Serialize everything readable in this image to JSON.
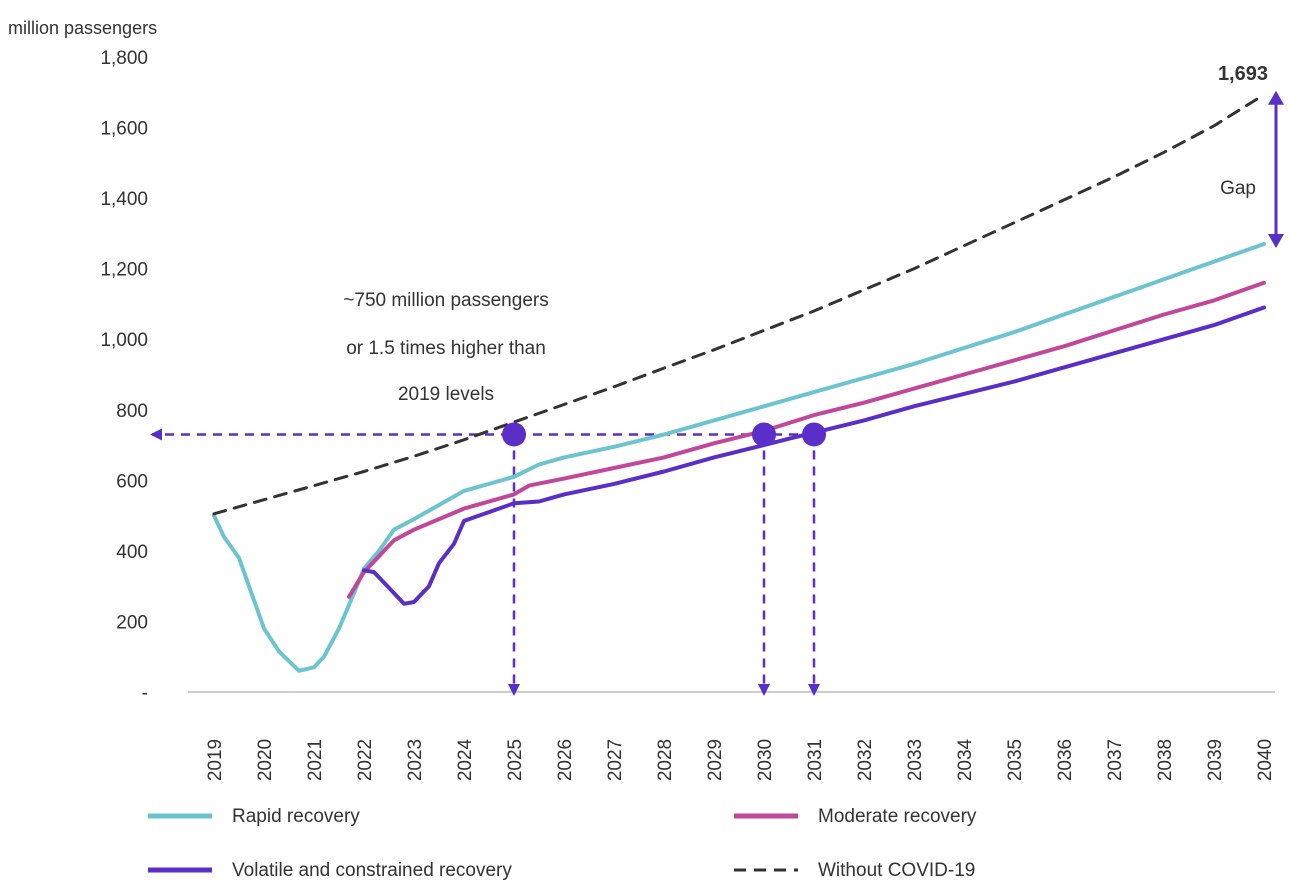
{
  "chart_data": {
    "type": "line",
    "ylabel": "million passengers",
    "y_ticks": [
      {
        "value": 0,
        "label": "-"
      },
      {
        "value": 200,
        "label": "200"
      },
      {
        "value": 400,
        "label": "400"
      },
      {
        "value": 600,
        "label": "600"
      },
      {
        "value": 800,
        "label": "800"
      },
      {
        "value": 1000,
        "label": "1,000"
      },
      {
        "value": 1200,
        "label": "1,200"
      },
      {
        "value": 1400,
        "label": "1,400"
      },
      {
        "value": 1600,
        "label": "1,600"
      },
      {
        "value": 1800,
        "label": "1,800"
      }
    ],
    "ylim": [
      0,
      1800
    ],
    "xlim": [
      2019,
      2040
    ],
    "x_ticks": [
      "2019",
      "2020",
      "2021",
      "2022",
      "2023",
      "2024",
      "2025",
      "2026",
      "2027",
      "2028",
      "2029",
      "2030",
      "2031",
      "2032",
      "2033",
      "2034",
      "2035",
      "2036",
      "2037",
      "2038",
      "2039",
      "2040"
    ],
    "grid": false,
    "legend_position": "bottom",
    "series": [
      {
        "name": "Rapid recovery",
        "color": "#6cc4cf",
        "dash": false,
        "points": [
          [
            2019,
            500
          ],
          [
            2019.2,
            440
          ],
          [
            2019.5,
            380
          ],
          [
            2019.8,
            260
          ],
          [
            2020.0,
            180
          ],
          [
            2020.3,
            115
          ],
          [
            2020.7,
            60
          ],
          [
            2021.0,
            70
          ],
          [
            2021.2,
            100
          ],
          [
            2021.5,
            180
          ],
          [
            2021.8,
            280
          ],
          [
            2022.0,
            350
          ],
          [
            2022.3,
            400
          ],
          [
            2022.6,
            460
          ],
          [
            2023,
            490
          ],
          [
            2023.5,
            530
          ],
          [
            2024,
            570
          ],
          [
            2025,
            610
          ],
          [
            2025.5,
            645
          ],
          [
            2026,
            665
          ],
          [
            2027,
            695
          ],
          [
            2028,
            730
          ],
          [
            2029,
            770
          ],
          [
            2030,
            810
          ],
          [
            2031,
            850
          ],
          [
            2032,
            890
          ],
          [
            2033,
            930
          ],
          [
            2034,
            975
          ],
          [
            2035,
            1020
          ],
          [
            2036,
            1070
          ],
          [
            2037,
            1120
          ],
          [
            2038,
            1170
          ],
          [
            2039,
            1220
          ],
          [
            2040,
            1270
          ]
        ]
      },
      {
        "name": "Moderate recovery",
        "color": "#c2479a",
        "dash": false,
        "points": [
          [
            2021.7,
            270
          ],
          [
            2022.0,
            340
          ],
          [
            2022.3,
            385
          ],
          [
            2022.6,
            430
          ],
          [
            2023,
            460
          ],
          [
            2023.5,
            490
          ],
          [
            2024,
            520
          ],
          [
            2025,
            560
          ],
          [
            2025.3,
            585
          ],
          [
            2026,
            605
          ],
          [
            2027,
            635
          ],
          [
            2028,
            665
          ],
          [
            2029,
            705
          ],
          [
            2030,
            740
          ],
          [
            2031,
            785
          ],
          [
            2032,
            820
          ],
          [
            2033,
            860
          ],
          [
            2034,
            900
          ],
          [
            2035,
            940
          ],
          [
            2036,
            980
          ],
          [
            2037,
            1025
          ],
          [
            2038,
            1070
          ],
          [
            2039,
            1110
          ],
          [
            2040,
            1160
          ]
        ]
      },
      {
        "name": "Volatile and constrained recovery",
        "color": "#5a2ec8",
        "dash": false,
        "points": [
          [
            2022.0,
            345
          ],
          [
            2022.2,
            340
          ],
          [
            2022.5,
            295
          ],
          [
            2022.8,
            250
          ],
          [
            2023.0,
            255
          ],
          [
            2023.3,
            300
          ],
          [
            2023.5,
            365
          ],
          [
            2023.8,
            420
          ],
          [
            2024,
            485
          ],
          [
            2024.5,
            510
          ],
          [
            2025,
            535
          ],
          [
            2025.5,
            540
          ],
          [
            2026,
            560
          ],
          [
            2027,
            590
          ],
          [
            2028,
            625
          ],
          [
            2029,
            665
          ],
          [
            2030,
            700
          ],
          [
            2030.5,
            718
          ],
          [
            2031,
            735
          ],
          [
            2032,
            770
          ],
          [
            2033,
            810
          ],
          [
            2034,
            845
          ],
          [
            2035,
            880
          ],
          [
            2036,
            920
          ],
          [
            2037,
            960
          ],
          [
            2038,
            1000
          ],
          [
            2039,
            1040
          ],
          [
            2040,
            1090
          ]
        ]
      },
      {
        "name": "Without COVID-19",
        "color": "#333333",
        "dash": true,
        "points": [
          [
            2019,
            505
          ],
          [
            2020,
            545
          ],
          [
            2021,
            585
          ],
          [
            2022,
            625
          ],
          [
            2023,
            668
          ],
          [
            2024,
            715
          ],
          [
            2025,
            765
          ],
          [
            2026,
            815
          ],
          [
            2027,
            865
          ],
          [
            2028,
            918
          ],
          [
            2029,
            970
          ],
          [
            2030,
            1025
          ],
          [
            2031,
            1080
          ],
          [
            2032,
            1140
          ],
          [
            2033,
            1200
          ],
          [
            2034,
            1265
          ],
          [
            2035,
            1330
          ],
          [
            2036,
            1395
          ],
          [
            2037,
            1460
          ],
          [
            2038,
            1530
          ],
          [
            2039,
            1605
          ],
          [
            2040,
            1693
          ]
        ]
      }
    ],
    "threshold": {
      "value": 730,
      "color": "#5a2ec8"
    },
    "markers": [
      {
        "year": 2025,
        "value": 730
      },
      {
        "year": 2030,
        "value": 730
      },
      {
        "year": 2031,
        "value": 730
      }
    ],
    "annotations": {
      "callout_lines": [
        "~750 million passengers",
        "or 1.5 times higher than",
        "2019 levels"
      ],
      "end_value_label": "1,693",
      "gap_label": "Gap",
      "gap_range": [
        1270,
        1693
      ]
    }
  }
}
